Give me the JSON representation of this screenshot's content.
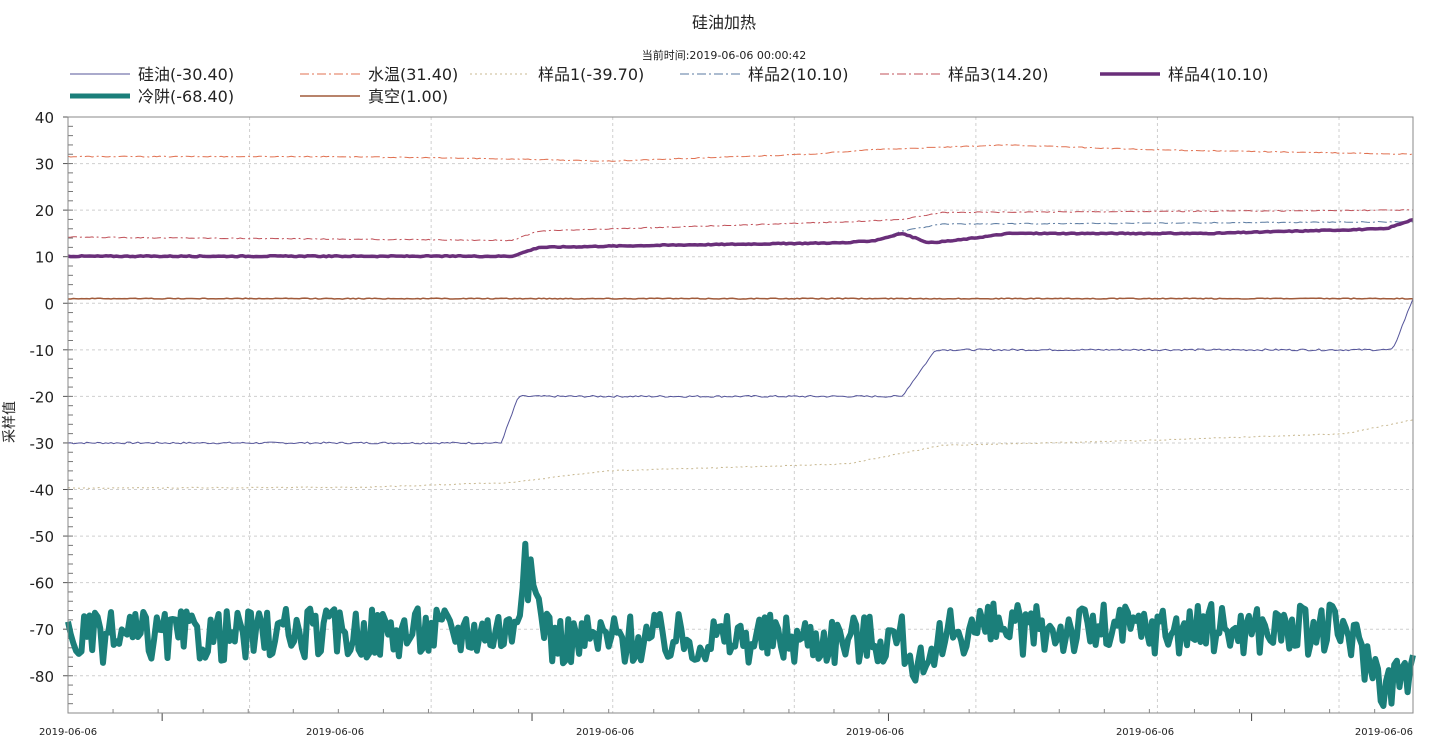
{
  "chart_data": {
    "type": "line",
    "title": "硅油加热",
    "subtitle": "当前时间:2019-06-06  00:00:42",
    "ylabel": "采样值",
    "xlabel": "",
    "ylim": [
      -88,
      40
    ],
    "y_ticks": [
      40,
      30,
      20,
      10,
      0,
      -10,
      -20,
      -30,
      -40,
      -50,
      -60,
      -70,
      -80
    ],
    "x_tick_labels": [
      "2019-06-06",
      "2019-06-06",
      "2019-06-06",
      "2019-06-06",
      "2019-06-06",
      "2019-06-06"
    ],
    "grid": true,
    "legend_position": "top",
    "x_unit": "time samples (x axis ticks labelled by date only)",
    "series": [
      {
        "name": "硅油(-30.40)",
        "color": "#55559a",
        "style": "solid",
        "width": 1,
        "x": [
          0,
          0.3,
          0.322,
          0.335,
          0.58,
          0.62,
          0.645,
          0.955,
          0.985,
          1.0
        ],
        "y": [
          -30,
          -30,
          -30,
          -20,
          -20,
          -20,
          -10,
          -10,
          -10,
          1
        ]
      },
      {
        "name": "水温(31.40)",
        "color": "#e07050",
        "style": "dashdot",
        "width": 1,
        "x": [
          0,
          0.2,
          0.33,
          0.4,
          0.45,
          0.55,
          0.6,
          0.65,
          0.7,
          0.8,
          1.0
        ],
        "y": [
          31.5,
          31.5,
          31,
          30.5,
          31,
          32,
          33,
          33.5,
          34,
          33,
          32
        ]
      },
      {
        "name": "样品1(-39.70)",
        "color": "#c8b890",
        "style": "dotted",
        "width": 1,
        "x": [
          0,
          0.22,
          0.33,
          0.4,
          0.58,
          0.65,
          0.8,
          0.95,
          1.0
        ],
        "y": [
          -39.7,
          -39.5,
          -38.5,
          -36,
          -34.5,
          -30.5,
          -29.5,
          -28,
          -25
        ]
      },
      {
        "name": "样品2(10.10)",
        "color": "#5a7aa0",
        "style": "dashdot",
        "width": 1,
        "x": [
          0,
          0.33,
          0.35,
          0.58,
          0.6,
          0.62,
          0.65,
          1.0
        ],
        "y": [
          10.1,
          10.1,
          12,
          13,
          13.5,
          15.5,
          17,
          17.5
        ]
      },
      {
        "name": "样品3(14.20)",
        "color": "#c05058",
        "style": "dashdot",
        "width": 1,
        "x": [
          0,
          0.33,
          0.35,
          0.58,
          0.62,
          0.65,
          1.0
        ],
        "y": [
          14.2,
          13.5,
          15.5,
          17.5,
          18,
          19.5,
          20
        ]
      },
      {
        "name": "样品4(10.10)",
        "color": "#6a2f7a",
        "style": "solid",
        "width": 3.5,
        "x": [
          0,
          0.33,
          0.35,
          0.45,
          0.58,
          0.6,
          0.62,
          0.64,
          0.66,
          0.7,
          0.85,
          0.98,
          1.0
        ],
        "y": [
          10.1,
          10.1,
          12,
          12.5,
          13,
          13.5,
          15,
          13,
          13.5,
          15,
          15,
          16,
          18
        ]
      },
      {
        "name": "冷阱(-68.40)",
        "color": "#1b7f7a",
        "style": "solid",
        "width": 6,
        "x": [
          0,
          0.33,
          0.34,
          0.36,
          0.45,
          0.55,
          0.62,
          0.64,
          0.65,
          0.8,
          0.95,
          0.98,
          1.0
        ],
        "y": [
          -72,
          -70,
          -57,
          -72,
          -72,
          -72,
          -72,
          -82,
          -70,
          -70,
          -70,
          -82,
          -78
        ]
      },
      {
        "name": "真空(1.00)",
        "color": "#a05a3a",
        "style": "solid",
        "width": 1.5,
        "x": [
          0,
          1.0
        ],
        "y": [
          1,
          1
        ]
      }
    ]
  }
}
